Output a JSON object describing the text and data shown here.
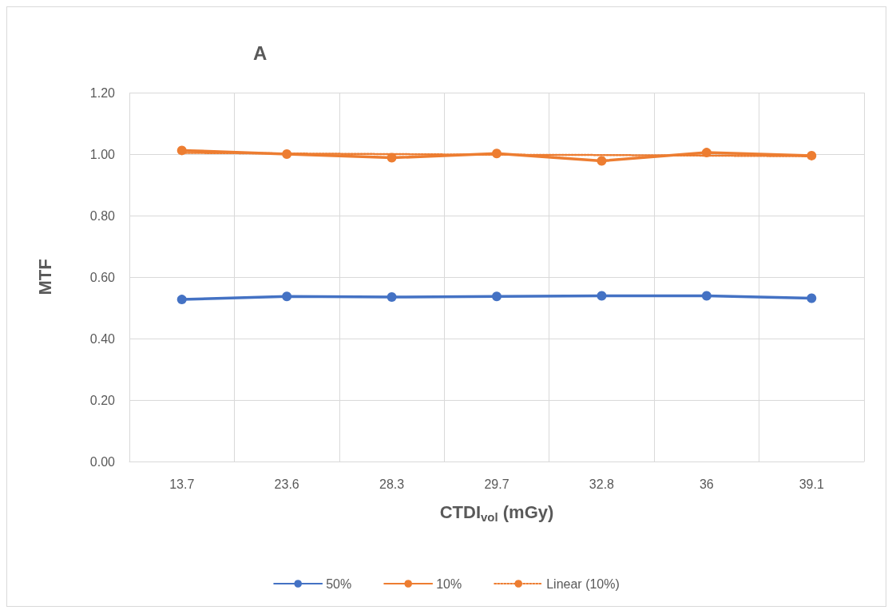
{
  "chart_data": {
    "type": "line",
    "title": "A",
    "xlabel": "CTDI$_{vol}$ (mGy)",
    "ylabel": "MTF",
    "categories": [
      "13.7",
      "23.6",
      "28.3",
      "29.7",
      "32.8",
      "36",
      "39.1"
    ],
    "series": [
      {
        "name": "50%",
        "color": "#4472c4",
        "values": [
          0.527,
          0.537,
          0.535,
          0.537,
          0.539,
          0.539,
          0.531
        ]
      },
      {
        "name": "10%",
        "color": "#ed7d31",
        "values": [
          1.012,
          1.0,
          0.988,
          1.002,
          0.978,
          1.005,
          0.995
        ]
      },
      {
        "name": "Linear (10%)",
        "color": "#ed7d31",
        "marker": "none",
        "line_style": "dotted",
        "values": [
          1.004,
          1.002,
          1.0,
          0.998,
          0.997,
          0.995,
          0.993
        ]
      }
    ],
    "ylim": [
      0,
      1.2
    ],
    "yticks": [
      {
        "value": 0,
        "label": "0.00"
      },
      {
        "value": 0.2,
        "label": "0.20"
      },
      {
        "value": 0.4,
        "label": "0.40"
      },
      {
        "value": 0.6,
        "label": "0.60"
      },
      {
        "value": 0.8,
        "label": "0.80"
      },
      {
        "value": 1.0,
        "label": "1.00"
      },
      {
        "value": 1.2,
        "label": "1.20"
      }
    ],
    "grid": true,
    "legend": "bottom",
    "marker": "circle",
    "line_style": "solid"
  }
}
